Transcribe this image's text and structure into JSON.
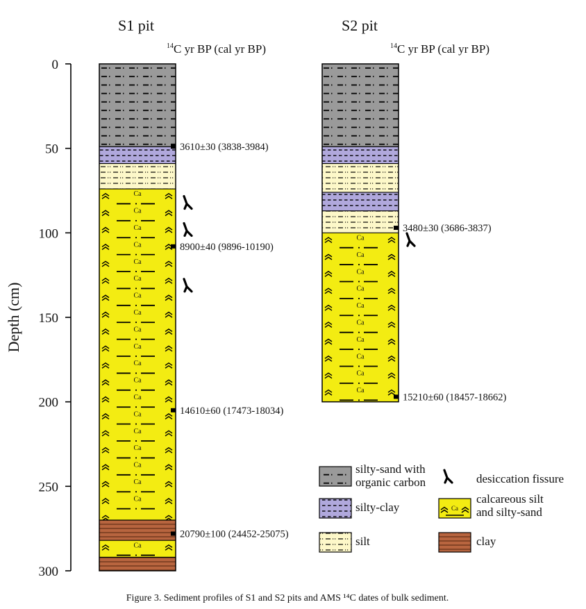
{
  "figure": {
    "caption": "Figure 3. Sediment profiles of S1 and S2 pits and AMS ¹⁴C dates of bulk sediment.",
    "y_axis": {
      "label": "Depth (cm)",
      "ticks": [
        0,
        50,
        100,
        150,
        200,
        250,
        300
      ]
    },
    "columns": [
      {
        "id": "s1",
        "title": "S1 pit",
        "date_header": {
          "sup": "14",
          "text": "C yr BP (cal yr BP)"
        },
        "layers": [
          {
            "type": "silty-sand-organic",
            "top": 0,
            "bottom": 49
          },
          {
            "type": "silty-clay",
            "top": 49,
            "bottom": 59
          },
          {
            "type": "silt",
            "top": 59,
            "bottom": 74
          },
          {
            "type": "calcareous",
            "top": 74,
            "bottom": 270
          },
          {
            "type": "clay",
            "top": 270,
            "bottom": 282
          },
          {
            "type": "calcareous",
            "top": 282,
            "bottom": 292
          },
          {
            "type": "clay",
            "top": 292,
            "bottom": 300
          }
        ],
        "dates": [
          {
            "depth": 49,
            "label": "3610±30 (3838-3984)"
          },
          {
            "depth": 108,
            "label": "8900±40 (9896-10190)"
          },
          {
            "depth": 205,
            "label": "14610±60 (17473-18034)"
          },
          {
            "depth": 278,
            "label": "20790±100 (24452-25075)"
          }
        ],
        "fissures": [
          82,
          98,
          131
        ]
      },
      {
        "id": "s2",
        "title": "S2 pit",
        "date_header": {
          "sup": "14",
          "text": "C yr BP (cal yr BP)"
        },
        "layers": [
          {
            "type": "silty-sand-organic",
            "top": 0,
            "bottom": 49
          },
          {
            "type": "silty-clay",
            "top": 49,
            "bottom": 59
          },
          {
            "type": "silt",
            "top": 59,
            "bottom": 76
          },
          {
            "type": "silty-clay",
            "top": 76,
            "bottom": 87
          },
          {
            "type": "silt",
            "top": 87,
            "bottom": 100
          },
          {
            "type": "calcareous",
            "top": 100,
            "bottom": 200
          }
        ],
        "dates": [
          {
            "depth": 97,
            "label": "3480±30 (3686-3837)"
          },
          {
            "depth": 197,
            "label": "15210±60 (18457-18662)"
          }
        ],
        "fissures": [
          104
        ]
      }
    ],
    "legend": [
      {
        "type": "silty-sand-organic",
        "label_lines": [
          "silty-sand with",
          "organic carbon"
        ]
      },
      {
        "type": "fissure",
        "label_lines": [
          "desiccation fissure"
        ]
      },
      {
        "type": "silty-clay",
        "label_lines": [
          "silty-clay"
        ]
      },
      {
        "type": "calcareous",
        "label_lines": [
          "calcareous silt",
          "and silty-sand"
        ]
      },
      {
        "type": "silt",
        "label_lines": [
          "silt"
        ]
      },
      {
        "type": "clay",
        "label_lines": [
          "clay"
        ]
      }
    ],
    "calcareous_marker": "Ca",
    "colors": {
      "silty_sand_organic": "#9a9a9a",
      "silty_clay": "#b0a8dc",
      "silt": "#fdf8c9",
      "calcareous": "#f3ec12",
      "clay": "#b8653f",
      "clay_line": "#5a2a12"
    }
  }
}
